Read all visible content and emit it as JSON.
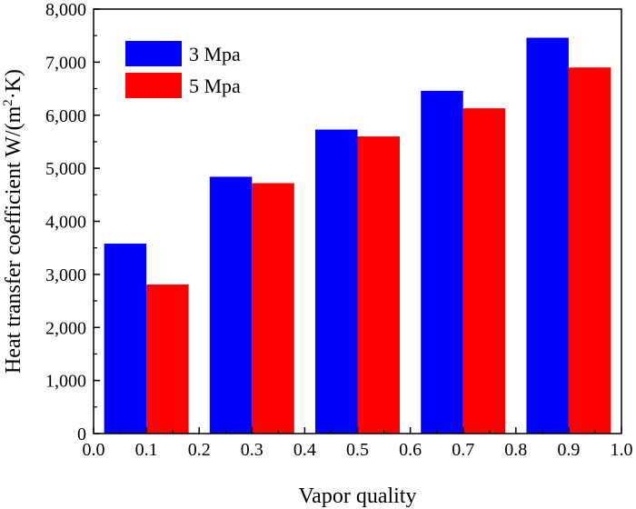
{
  "chart_data": {
    "type": "bar",
    "xlabel": "Vapor quality",
    "ylabel": "Heat transfer coefficient  W/(m²·K)",
    "ylabel_main": "Heat transfer coefficient  W/(m",
    "ylabel_sup": "2",
    "ylabel_tail": "·K)",
    "xlim": [
      0.0,
      1.0
    ],
    "ylim": [
      0,
      8000
    ],
    "x_ticks": [
      "0.0",
      "0.1",
      "0.2",
      "0.3",
      "0.4",
      "0.5",
      "0.6",
      "0.7",
      "0.8",
      "0.9",
      "1.0"
    ],
    "y_ticks": [
      "0",
      "1,000",
      "2,000",
      "3,000",
      "4,000",
      "5,000",
      "6,000",
      "7,000",
      "8,000"
    ],
    "categories": [
      0.1,
      0.3,
      0.5,
      0.7,
      0.9
    ],
    "series": [
      {
        "name": "3 Mpa",
        "color": "#0000ff",
        "values": [
          3580,
          4840,
          5730,
          6460,
          7460
        ]
      },
      {
        "name": "5 Mpa",
        "color": "#ff0000",
        "values": [
          2810,
          4720,
          5600,
          6130,
          6900
        ]
      }
    ],
    "legend_position": "top-left",
    "grid": false
  }
}
